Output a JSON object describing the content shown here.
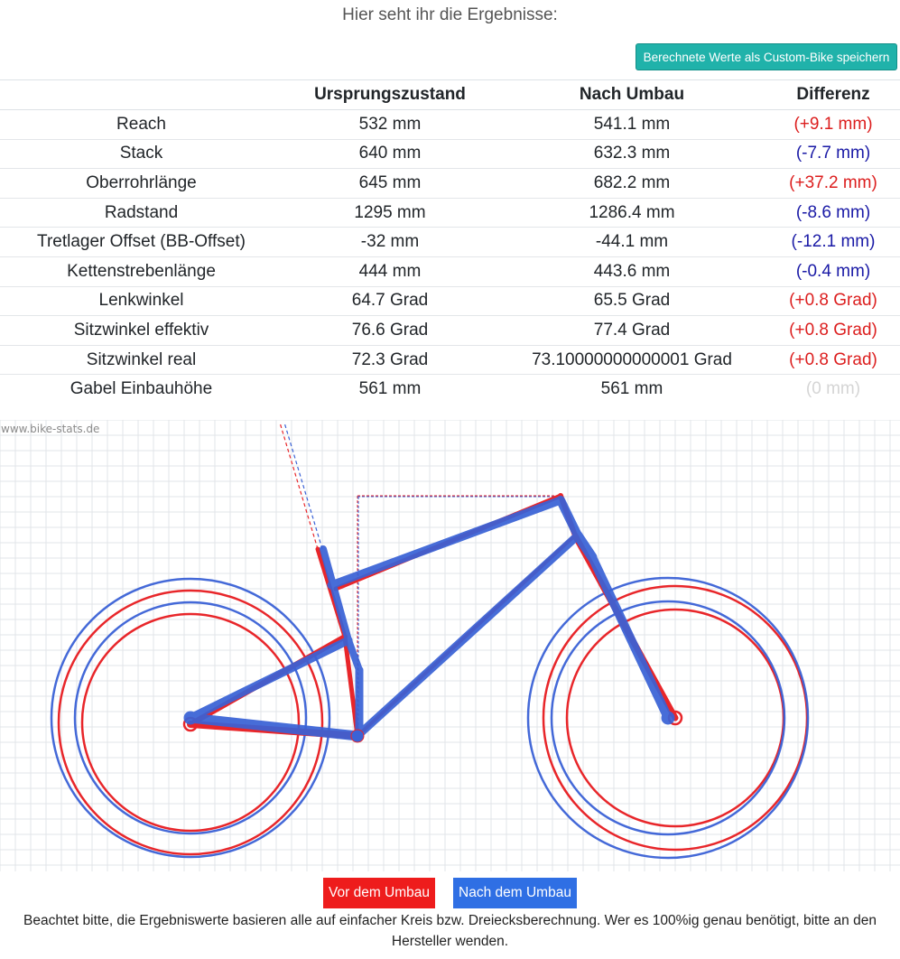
{
  "header": {
    "intro_text": "Hier seht ihr die Ergebnisse:",
    "save_button_label": "Berechnete Werte als Custom-Bike speichern"
  },
  "table": {
    "columns": [
      "",
      "Ursprungszustand",
      "Nach Umbau",
      "Differenz"
    ],
    "rows": [
      {
        "name": "Reach",
        "before": "532 mm",
        "after": "541.1 mm",
        "diff": "(+9.1 mm)",
        "diff_color": "red"
      },
      {
        "name": "Stack",
        "before": "640 mm",
        "after": "632.3 mm",
        "diff": "(-7.7 mm)",
        "diff_color": "blue"
      },
      {
        "name": "Oberrohrlänge",
        "before": "645 mm",
        "after": "682.2 mm",
        "diff": "(+37.2 mm)",
        "diff_color": "red"
      },
      {
        "name": "Radstand",
        "before": "1295 mm",
        "after": "1286.4 mm",
        "diff": "(-8.6 mm)",
        "diff_color": "blue"
      },
      {
        "name": "Tretlager Offset (BB-Offset)",
        "before": "-32 mm",
        "after": "-44.1 mm",
        "diff": "(-12.1 mm)",
        "diff_color": "blue"
      },
      {
        "name": "Kettenstrebenlänge",
        "before": "444 mm",
        "after": "443.6 mm",
        "diff": "(-0.4 mm)",
        "diff_color": "blue"
      },
      {
        "name": "Lenkwinkel",
        "before": "64.7 Grad",
        "after": "65.5 Grad",
        "diff": "(+0.8 Grad)",
        "diff_color": "red"
      },
      {
        "name": "Sitzwinkel effektiv",
        "before": "76.6 Grad",
        "after": "77.4 Grad",
        "diff": "(+0.8 Grad)",
        "diff_color": "red"
      },
      {
        "name": "Sitzwinkel real",
        "before": "72.3 Grad",
        "after": "73.10000000000001 Grad",
        "diff": "(+0.8 Grad)",
        "diff_color": "red"
      },
      {
        "name": "Gabel Einbauhöhe",
        "before": "561 mm",
        "after": "561 mm",
        "diff": "(0 mm)",
        "diff_color": "gray"
      }
    ]
  },
  "drawing": {
    "watermark": "www.bike-stats.de",
    "color_before": "#e8262a",
    "color_after": "#3a62d6",
    "grid_color": "#e2e4e8"
  },
  "legend": {
    "before_label": "Vor dem Umbau",
    "after_label": "Nach dem Umbau",
    "before_color": "#ee1c1c",
    "after_color": "#2f6fe4"
  },
  "footer": {
    "note": "Beachtet bitte, die Ergebniswerte basieren alle auf einfacher Kreis bzw. Dreiecksberechnung. Wer es 100%ig genau benötigt, bitte an den Hersteller wenden."
  }
}
